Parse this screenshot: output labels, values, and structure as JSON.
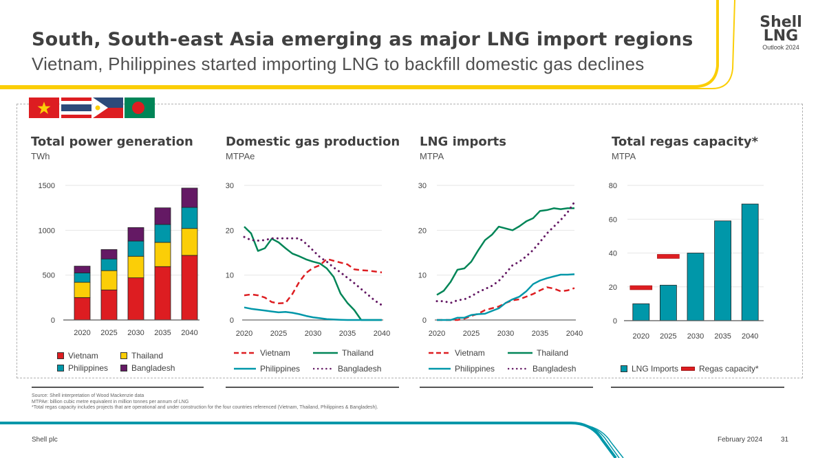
{
  "header": {
    "title": "South, South-east Asia emerging as major LNG import regions",
    "subtitle": "Vietnam, Philippines started importing LNG to backfill domestic gas declines",
    "logo_line1": "Shell",
    "logo_line2": "LNG",
    "logo_line3": "Outlook 2024"
  },
  "flags": [
    "vietnam-flag-icon",
    "thailand-flag-icon",
    "philippines-flag-icon",
    "bangladesh-flag-icon"
  ],
  "colors": {
    "vietnam": "#dd1d21",
    "thailand": "#fbce07",
    "philippines": "#0097a9",
    "bangladesh": "#641964",
    "thailand_line": "#008557",
    "accent_yellow": "#fbce07",
    "accent_teal": "#0097a9"
  },
  "legend_lines": {
    "vietnam": "Vietnam",
    "thailand": "Thailand",
    "philippines": "Philippines",
    "bangladesh": "Bangladesh"
  },
  "chart_data": [
    {
      "type": "bar",
      "stacked": true,
      "title": "Total power generation",
      "unit": "TWh",
      "categories": [
        "2020",
        "2025",
        "2030",
        "2035",
        "2040"
      ],
      "ylim": [
        0,
        1500
      ],
      "yticks": [
        "0",
        "500",
        "1000",
        "1500"
      ],
      "series": [
        {
          "name": "Vietnam",
          "values": [
            250,
            335,
            470,
            595,
            720
          ]
        },
        {
          "name": "Thailand",
          "values": [
            170,
            215,
            240,
            270,
            300
          ]
        },
        {
          "name": "Philippines",
          "values": [
            105,
            130,
            170,
            200,
            235
          ]
        },
        {
          "name": "Bangladesh",
          "values": [
            75,
            105,
            150,
            185,
            215
          ]
        }
      ],
      "legend": [
        "Vietnam",
        "Thailand",
        "Philippines",
        "Bangladesh"
      ],
      "legend_position": "bottom"
    },
    {
      "type": "line",
      "title": "Domestic gas production",
      "unit": "MTPAe",
      "x": [
        2020,
        2021,
        2022,
        2023,
        2024,
        2025,
        2026,
        2027,
        2028,
        2029,
        2030,
        2031,
        2032,
        2033,
        2034,
        2035,
        2036,
        2037,
        2038,
        2039,
        2040
      ],
      "xticks": [
        "2020",
        "2025",
        "2030",
        "2035",
        "2040"
      ],
      "ylim": [
        0,
        30
      ],
      "yticks": [
        "0",
        "10",
        "20",
        "30"
      ],
      "series": [
        {
          "name": "Vietnam",
          "style": "dashed",
          "values": [
            5.5,
            5.7,
            5.5,
            5.0,
            4.0,
            3.7,
            3.8,
            5.8,
            8.5,
            10.5,
            11.6,
            12.2,
            13.6,
            13.2,
            12.8,
            12.4,
            11.3,
            11.1,
            11.0,
            10.8,
            10.6
          ]
        },
        {
          "name": "Thailand",
          "style": "solid",
          "values": [
            20.8,
            19.3,
            15.4,
            16.0,
            18.1,
            17.3,
            16.0,
            14.8,
            14.2,
            13.5,
            13.0,
            12.6,
            11.5,
            9.6,
            5.9,
            3.8,
            2.2,
            0.0,
            0.0,
            0.0,
            0.0
          ]
        },
        {
          "name": "Philippines",
          "style": "solid",
          "values": [
            2.8,
            2.5,
            2.3,
            2.1,
            1.9,
            1.7,
            1.8,
            1.6,
            1.3,
            0.9,
            0.6,
            0.4,
            0.2,
            0.1,
            0.05,
            0,
            0,
            0,
            0,
            0,
            0
          ]
        },
        {
          "name": "Bangladesh",
          "style": "dotted",
          "values": [
            18.5,
            17.8,
            17.7,
            17.8,
            18.2,
            18.2,
            18.2,
            18.2,
            18.2,
            17.0,
            15.5,
            14.0,
            13.0,
            11.7,
            10.6,
            9.4,
            8.2,
            6.9,
            5.6,
            4.3,
            3.3
          ]
        }
      ],
      "legend": [
        "Vietnam",
        "Thailand",
        "Philippines",
        "Bangladesh"
      ],
      "legend_position": "bottom"
    },
    {
      "type": "line",
      "title": "LNG imports",
      "unit": "MTPA",
      "x": [
        2020,
        2021,
        2022,
        2023,
        2024,
        2025,
        2026,
        2027,
        2028,
        2029,
        2030,
        2031,
        2032,
        2033,
        2034,
        2035,
        2036,
        2037,
        2038,
        2039,
        2040
      ],
      "xticks": [
        "2020",
        "2025",
        "2030",
        "2035",
        "2040"
      ],
      "ylim": [
        0,
        30
      ],
      "yticks": [
        "0",
        "10",
        "20",
        "30"
      ],
      "series": [
        {
          "name": "Vietnam",
          "style": "dashed",
          "values": [
            0,
            0,
            0,
            0,
            0.3,
            0.9,
            1.4,
            2.2,
            2.6,
            3.0,
            3.8,
            4.4,
            4.6,
            5.2,
            5.8,
            6.6,
            7.3,
            7.0,
            6.4,
            6.6,
            7.1
          ]
        },
        {
          "name": "Thailand",
          "style": "solid",
          "values": [
            5.6,
            6.5,
            8.5,
            11.2,
            11.5,
            13.0,
            15.5,
            17.8,
            19.0,
            20.8,
            20.4,
            20.0,
            20.9,
            22.0,
            22.7,
            24.3,
            24.5,
            24.9,
            24.7,
            24.9,
            24.9
          ]
        },
        {
          "name": "Philippines",
          "style": "solid",
          "values": [
            0,
            0,
            0,
            0.5,
            0.5,
            1.1,
            1.3,
            1.4,
            2.0,
            2.6,
            3.8,
            4.6,
            5.2,
            6.4,
            8.0,
            8.8,
            9.3,
            9.7,
            10.1,
            10.1,
            10.2
          ]
        },
        {
          "name": "Bangladesh",
          "style": "dotted",
          "values": [
            4.2,
            4.2,
            3.8,
            4.4,
            4.6,
            5.3,
            6.2,
            6.9,
            7.6,
            8.7,
            10.4,
            12.2,
            13.0,
            14.2,
            15.6,
            17.4,
            19.3,
            20.8,
            22.3,
            24.0,
            26.3
          ]
        }
      ],
      "legend": [
        "Vietnam",
        "Thailand",
        "Philippines",
        "Bangladesh"
      ],
      "legend_position": "bottom"
    },
    {
      "type": "bar",
      "title": "Total regas capacity*",
      "unit": "MTPA",
      "categories": [
        "2020",
        "2025",
        "2030",
        "2035",
        "2040"
      ],
      "ylim": [
        0,
        80
      ],
      "yticks": [
        "0",
        "20",
        "40",
        "60",
        "80"
      ],
      "series": [
        {
          "name": "LNG Imports",
          "values": [
            10,
            21,
            40,
            59,
            69
          ]
        },
        {
          "name": "Regas capacity*",
          "marker": "horizontal-bar",
          "values": [
            19.5,
            38,
            null,
            null,
            null
          ]
        }
      ],
      "legend": [
        "LNG Imports",
        "Regas capacity*"
      ],
      "legend_position": "bottom"
    }
  ],
  "notes": [
    "Source: Shell interpretation of Wood Mackenzie data",
    "MTPAe: billion cubic metre equivalent in million tonnes per annum of LNG",
    "*Total regas capacity includes projects that are operational and under construction for the four countries referenced (Vietnam, Thailand, Philippines & Bangladesh)."
  ],
  "footer": {
    "company": "Shell plc",
    "date": "February 2024",
    "page": "31"
  }
}
